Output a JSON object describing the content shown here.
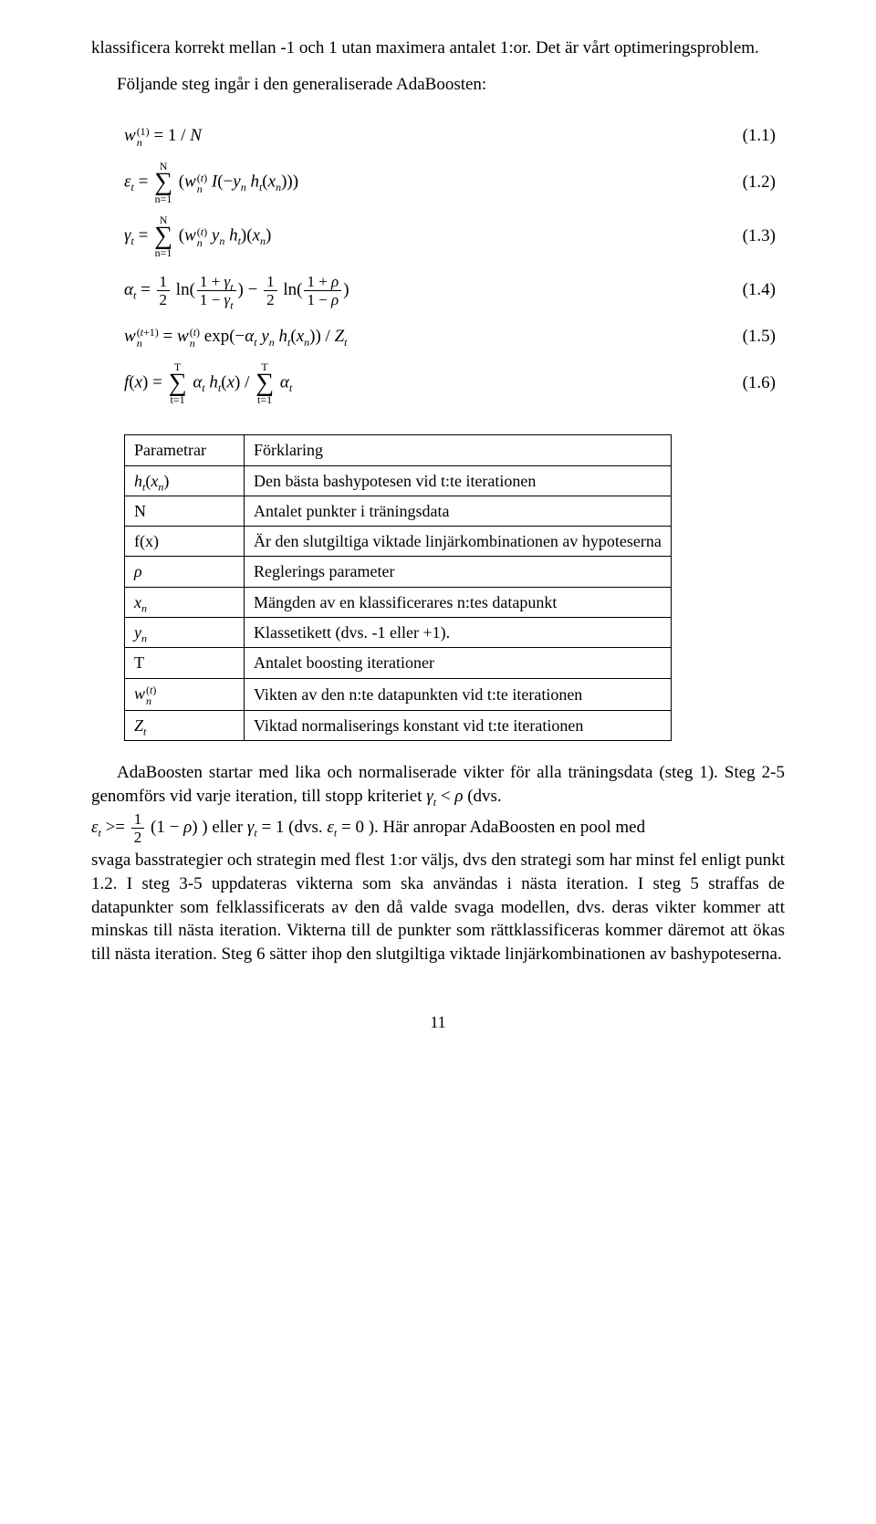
{
  "intro": {
    "p1": "klassificera korrekt mellan -1 och 1 utan maximera antalet 1:or. Det är vårt optimeringsproblem.",
    "p2": "Följande steg ingår i den generaliserade AdaBoosten:"
  },
  "eqs": {
    "e1_num": "(1.1)",
    "e2_num": "(1.2)",
    "e3_num": "(1.3)",
    "e4_num": "(1.4)",
    "e5_num": "(1.5)",
    "e6_num": "(1.6)",
    "sumN_top": "N",
    "sumN_bot": "n=1",
    "sumT_top": "T",
    "sumT_bot": "t=1"
  },
  "table": {
    "h1": "Parametrar",
    "h2": "Förklaring",
    "r1_b": "Den bästa bashypotesen vid t:te iterationen",
    "r2_a": "N",
    "r2_b": "Antalet punkter i träningsdata",
    "r3_a": "f(x)",
    "r3_b": "Är den slutgiltiga viktade linjärkombinationen av hypoteserna",
    "r4_b": "Reglerings parameter",
    "r5_b": "Mängden av en klassificerares n:tes datapunkt",
    "r6_b": "Klassetikett (dvs. -1 eller +1).",
    "r7_a": "T",
    "r7_b": "Antalet boosting iterationer",
    "r8_b": "Vikten av den n:te datapunkten vid t:te iterationen",
    "r9_b": "Viktad normaliserings konstant vid t:te iterationen"
  },
  "body2": {
    "p1a": "AdaBoosten startar med lika och normaliserade vikter för alla träningsdata (steg 1). Steg 2-5 genomförs vid varje iteration, till stopp kriteriet ",
    "p1b": " (dvs.",
    "p2mid": ") eller ",
    "p2b": " (dvs. ",
    "p2c": "). Här anropar AdaBoosten en pool med",
    "p3": "svaga basstrategier och strategin med flest 1:or väljs, dvs den strategi som har minst fel enligt punkt 1.2. I steg 3-5 uppdateras vikterna som ska användas i nästa iteration. I steg 5 straffas de datapunkter som felklassificerats av den då valde svaga modellen, dvs. deras vikter kommer att minskas till nästa iteration. Vikterna till de punkter som rättklassificeras kommer däremot att ökas till nästa iteration. Steg 6 sätter ihop den slutgiltiga viktade linjärkombinationen av bashypoteserna."
  },
  "pagenum": "11"
}
